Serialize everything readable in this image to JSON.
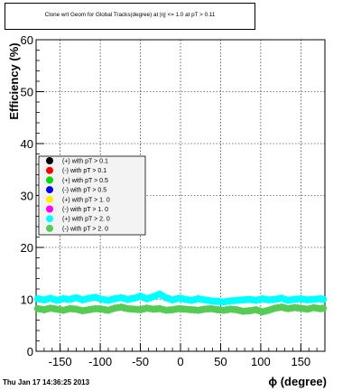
{
  "chart_data": {
    "type": "scatter",
    "title": "Clone wrt Geom for Global Tracks(degree) at |η| <= 1.0 at pT > 0.11",
    "xlabel": "ϕ (degree)",
    "ylabel": "Efficiency (%)",
    "xlim": [
      -180,
      180
    ],
    "ylim": [
      0,
      60
    ],
    "xticks": [
      "-150",
      "-100",
      "-50",
      "0",
      "50",
      "100",
      "150"
    ],
    "xtick_values": [
      -150,
      -100,
      -50,
      0,
      50,
      100,
      150
    ],
    "yticks": [
      "0",
      "10",
      "20",
      "30",
      "40",
      "50",
      "60"
    ],
    "ytick_values": [
      0,
      10,
      20,
      30,
      40,
      50,
      60
    ],
    "grid": true,
    "legend_position": "center-left",
    "series": [
      {
        "name": "(+) with pT > 0.1",
        "color": "#000000",
        "values": []
      },
      {
        "name": "(-) with pT > 0.1",
        "color": "#ff0000",
        "values": []
      },
      {
        "name": "(+) with pT > 0.5",
        "color": "#00dd00",
        "values": []
      },
      {
        "name": "(-) with pT > 0.5",
        "color": "#0000ff",
        "values": []
      },
      {
        "name": "(+) with pT > 1. 0",
        "color": "#ffee00",
        "values": []
      },
      {
        "name": "(-) with pT > 1. 0",
        "color": "#ff00ff",
        "values": []
      },
      {
        "name": "(+) with pT > 2. 0",
        "color": "#00ffff",
        "x": [
          -178,
          -170,
          -162,
          -154,
          -146,
          -138,
          -130,
          -122,
          -114,
          -106,
          -98,
          -90,
          -82,
          -74,
          -66,
          -58,
          -50,
          -42,
          -34,
          -26,
          -18,
          -10,
          -2,
          6,
          14,
          22,
          30,
          38,
          46,
          54,
          62,
          70,
          78,
          86,
          94,
          102,
          110,
          118,
          126,
          134,
          142,
          150,
          158,
          166,
          174,
          178
        ],
        "values": [
          10.1,
          9.9,
          10.2,
          9.8,
          10.1,
          10.0,
          10.3,
          9.9,
          10.2,
          10.4,
          10.0,
          9.8,
          10.1,
          10.3,
          10.0,
          10.2,
          10.6,
          10.1,
          10.5,
          11.0,
          10.3,
          9.9,
          10.2,
          10.0,
          9.8,
          10.1,
          9.9,
          9.7,
          9.6,
          9.5,
          9.7,
          9.8,
          9.9,
          10.0,
          9.8,
          10.1,
          9.9,
          10.0,
          10.2,
          9.8,
          10.0,
          10.1,
          9.9,
          10.0,
          10.1,
          10.0
        ]
      },
      {
        "name": "(-) with pT > 2. 0",
        "color": "#55cc55",
        "x": [
          -178,
          -170,
          -162,
          -154,
          -146,
          -138,
          -130,
          -122,
          -114,
          -106,
          -98,
          -90,
          -82,
          -74,
          -66,
          -58,
          -50,
          -42,
          -34,
          -26,
          -18,
          -10,
          -2,
          6,
          14,
          22,
          30,
          38,
          46,
          54,
          62,
          70,
          78,
          86,
          94,
          102,
          110,
          118,
          126,
          134,
          142,
          150,
          158,
          166,
          174,
          178
        ],
        "values": [
          8.2,
          8.0,
          8.3,
          8.1,
          7.9,
          8.2,
          8.1,
          7.8,
          8.0,
          8.2,
          8.1,
          7.9,
          8.3,
          8.5,
          8.2,
          8.1,
          8.0,
          8.3,
          8.1,
          8.2,
          7.9,
          8.0,
          8.2,
          8.1,
          8.0,
          7.9,
          8.1,
          8.2,
          8.0,
          7.9,
          8.1,
          8.0,
          7.7,
          7.8,
          8.0,
          7.6,
          7.9,
          8.3,
          8.5,
          8.2,
          8.4,
          8.3,
          8.1,
          8.4,
          8.2,
          8.3
        ]
      }
    ]
  },
  "footer": {
    "timestamp": "Thu Jan 17 14:36:25 2013"
  }
}
